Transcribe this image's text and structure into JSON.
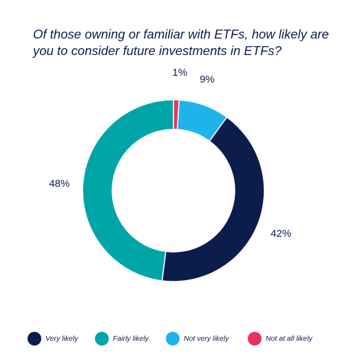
{
  "title": "Of those owning or familiar with ETFs, how likely are you to consider future investments in ETFs?",
  "chart_data": {
    "type": "pie",
    "title": "Of those owning or familiar with ETFs, how likely are you to consider future investments in ETFs?",
    "categories": [
      "Very likely",
      "Fairly likely",
      "Not very likely",
      "Not at all likely"
    ],
    "values": [
      42,
      48,
      9,
      1
    ],
    "labels": [
      "42%",
      "48%",
      "9%",
      "1%"
    ],
    "colors": [
      "#0d1d4b",
      "#00a5a8",
      "#1eb4ea",
      "#e8335f"
    ],
    "legend_position": "bottom",
    "donut": true
  },
  "legend": [
    {
      "label": "Very likely",
      "color": "#0d1d4b"
    },
    {
      "label": "Fairly likely",
      "color": "#00a5a8"
    },
    {
      "label": "Not very likely",
      "color": "#1eb4ea"
    },
    {
      "label": "Not at all likely",
      "color": "#e8335f"
    }
  ]
}
